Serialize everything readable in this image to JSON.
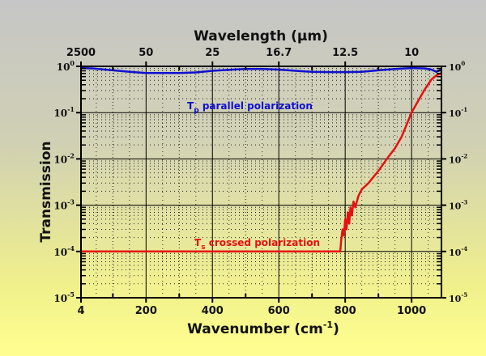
{
  "chart_data": {
    "type": "line",
    "xlabel": "Wavenumber (cm",
    "xlabel_sup": "-1",
    "xlabel_end": ")",
    "x2label": "Wavelength (µm)",
    "ylabel": "Transmission",
    "xlim": [
      4,
      1090
    ],
    "ylim": [
      1e-05,
      1
    ],
    "yscale": "log",
    "grid": true,
    "x_ticks": [
      {
        "value": 4,
        "label": "4"
      },
      {
        "value": 200,
        "label": "200"
      },
      {
        "value": 400,
        "label": "400"
      },
      {
        "value": 600,
        "label": "600"
      },
      {
        "value": 800,
        "label": "800"
      },
      {
        "value": 1000,
        "label": "1000"
      }
    ],
    "x2_ticks": [
      {
        "value": 4,
        "label": "2500"
      },
      {
        "value": 200,
        "label": "50"
      },
      {
        "value": 400,
        "label": "25"
      },
      {
        "value": 600,
        "label": "16.7"
      },
      {
        "value": 800,
        "label": "12.5"
      },
      {
        "value": 1000,
        "label": "10"
      }
    ],
    "y_ticks": [
      {
        "exp": 0,
        "base": "10",
        "sup": "0"
      },
      {
        "exp": -1,
        "base": "10",
        "sup": "-1"
      },
      {
        "exp": -2,
        "base": "10",
        "sup": "-2"
      },
      {
        "exp": -3,
        "base": "10",
        "sup": "-3"
      },
      {
        "exp": -4,
        "base": "10",
        "sup": "-4"
      },
      {
        "exp": -5,
        "base": "10",
        "sup": "-5"
      }
    ],
    "series": [
      {
        "name": "Tp parallel polarization",
        "label_main": "T",
        "label_sub": "p",
        "label_rest": " parallel polarization",
        "color": "#1010d0",
        "x": [
          4,
          40,
          100,
          150,
          200,
          250,
          300,
          350,
          400,
          450,
          500,
          550,
          600,
          650,
          700,
          750,
          800,
          850,
          900,
          950,
          1000,
          1040,
          1060,
          1075,
          1090
        ],
        "y": [
          0.92,
          0.9,
          0.82,
          0.76,
          0.72,
          0.72,
          0.72,
          0.74,
          0.8,
          0.84,
          0.88,
          0.88,
          0.85,
          0.8,
          0.76,
          0.75,
          0.75,
          0.76,
          0.82,
          0.88,
          0.92,
          0.9,
          0.85,
          0.76,
          0.86
        ]
      },
      {
        "name": "Ts crossed polarization",
        "label_main": "T",
        "label_sub": "s",
        "label_rest": " crossed polarization",
        "color": "#e81010",
        "x": [
          4,
          785,
          788,
          792,
          796,
          800,
          804,
          808,
          812,
          816,
          820,
          825,
          830,
          840,
          850,
          870,
          900,
          930,
          950,
          970,
          1000,
          1020,
          1040,
          1060,
          1075,
          1090
        ],
        "y": [
          0.0001,
          0.0001,
          0.00018,
          0.0003,
          0.00022,
          0.0005,
          0.0003,
          0.0007,
          0.0004,
          0.0009,
          0.0006,
          0.0012,
          0.0009,
          0.0016,
          0.0022,
          0.003,
          0.0055,
          0.011,
          0.017,
          0.03,
          0.1,
          0.18,
          0.32,
          0.52,
          0.64,
          0.72
        ]
      }
    ]
  }
}
